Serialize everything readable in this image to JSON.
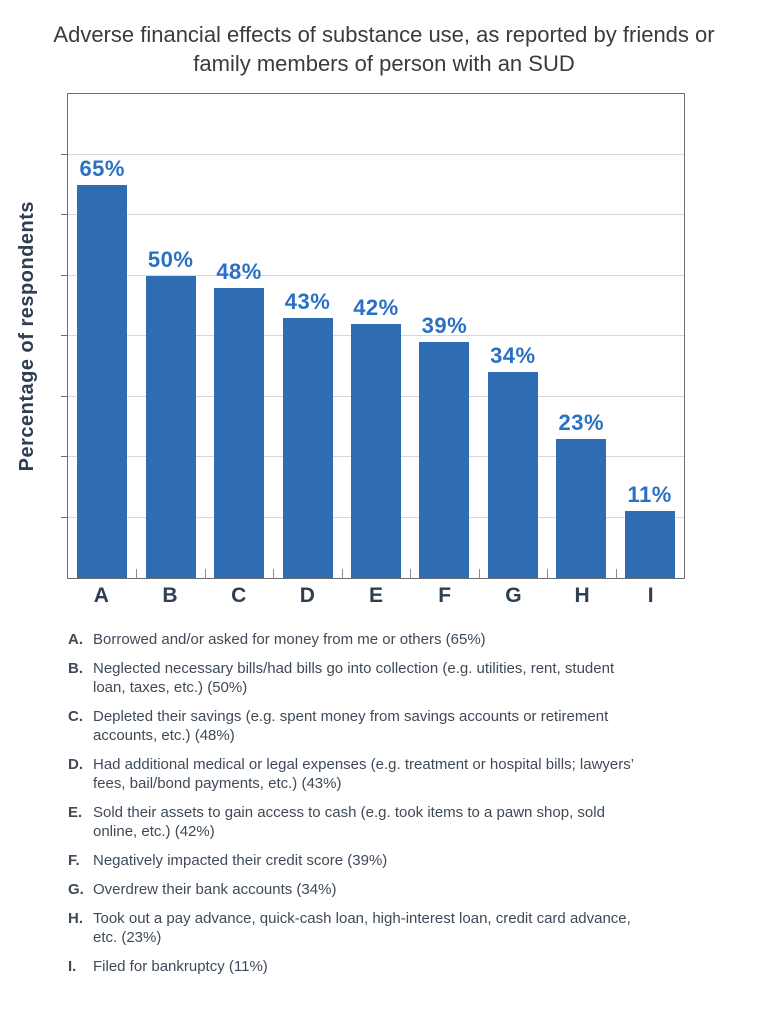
{
  "chart_data": {
    "type": "bar",
    "title": "Adverse financial effects of substance use, as reported by friends or family members of person with an SUD",
    "xlabel": "",
    "ylabel": "Percentage of respondents",
    "categories": [
      "A",
      "B",
      "C",
      "D",
      "E",
      "F",
      "G",
      "H",
      "I"
    ],
    "values": [
      65,
      50,
      48,
      43,
      42,
      39,
      34,
      23,
      11
    ],
    "value_labels": [
      "65%",
      "50%",
      "48%",
      "43%",
      "42%",
      "39%",
      "34%",
      "23%",
      "11%"
    ],
    "ylim": [
      0,
      80
    ],
    "gridline_step": 10,
    "grid": true,
    "legend_position": "below-chart",
    "colors": {
      "bar": "#2e6cb4",
      "value_label": "#2a70c4",
      "axis_text": "#2f3e52",
      "legend_text": "#3e4a58",
      "gridline": "#d8d8d8",
      "plot_border": "#6e6e6e",
      "title_text": "#3b3b3b"
    },
    "legend": [
      {
        "letter": "A.",
        "text": "Borrowed and/or asked for money from me or others (65%)"
      },
      {
        "letter": "B.",
        "text": "Neglected necessary bills/had bills go into collection (e.g. utilities, rent, student loan, taxes, etc.) (50%)"
      },
      {
        "letter": "C.",
        "text": "Depleted their savings (e.g. spent money from savings accounts or retirement accounts, etc.) (48%)"
      },
      {
        "letter": "D.",
        "text": "Had additional medical or legal expenses (e.g. treatment or hospital bills; lawyers’ fees, bail/bond payments, etc.) (43%)"
      },
      {
        "letter": "E.",
        "text": "Sold their assets to gain access to cash (e.g. took items to a pawn shop, sold online, etc.) (42%)"
      },
      {
        "letter": "F.",
        "text": "Negatively impacted their credit score (39%)"
      },
      {
        "letter": "G.",
        "text": "Overdrew their bank accounts (34%)"
      },
      {
        "letter": "H.",
        "text": "Took out a pay advance, quick-cash loan, high-interest loan, credit card advance, etc. (23%)"
      },
      {
        "letter": "I.",
        "text": "Filed for bankruptcy (11%)"
      }
    ]
  }
}
